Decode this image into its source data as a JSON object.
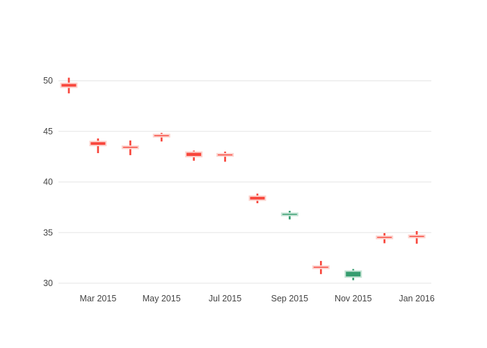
{
  "chart_data": {
    "type": "candlestick",
    "title": "",
    "xlabel": "",
    "ylabel": "",
    "legend": "none",
    "grid": "horizontal",
    "y_ticks": [
      30,
      35,
      40,
      45,
      50
    ],
    "x_ticks": [
      {
        "date": "2015-03-01",
        "label": "Mar 2015"
      },
      {
        "date": "2015-05-01",
        "label": "May 2015"
      },
      {
        "date": "2015-07-01",
        "label": "Jul 2015"
      },
      {
        "date": "2015-09-01",
        "label": "Sep 2015"
      },
      {
        "date": "2015-11-01",
        "label": "Nov 2015"
      },
      {
        "date": "2016-01-01",
        "label": "Jan 2016"
      }
    ],
    "x_range": [
      "2015-01-22",
      "2016-01-15"
    ],
    "y_range": [
      29.1,
      51.1
    ],
    "points": [
      {
        "date": "2015-02-01",
        "open": 49.75,
        "high": 50.3,
        "low": 48.75,
        "close": 49.35
      },
      {
        "date": "2015-03-01",
        "open": 44.0,
        "high": 44.3,
        "low": 42.85,
        "close": 43.6
      },
      {
        "date": "2015-04-01",
        "open": 43.45,
        "high": 44.1,
        "low": 42.65,
        "close": 43.4
      },
      {
        "date": "2015-05-01",
        "open": 44.6,
        "high": 44.85,
        "low": 44.0,
        "close": 44.55
      },
      {
        "date": "2015-06-01",
        "open": 42.95,
        "high": 43.1,
        "low": 42.1,
        "close": 42.5
      },
      {
        "date": "2015-07-01",
        "open": 42.7,
        "high": 43.0,
        "low": 42.0,
        "close": 42.65
      },
      {
        "date": "2015-08-01",
        "open": 38.6,
        "high": 38.85,
        "low": 37.9,
        "close": 38.2
      },
      {
        "date": "2015-09-01",
        "open": 36.75,
        "high": 37.15,
        "low": 36.3,
        "close": 36.85
      },
      {
        "date": "2015-10-01",
        "open": 31.6,
        "high": 32.2,
        "low": 30.9,
        "close": 31.55
      },
      {
        "date": "2015-11-01",
        "open": 30.6,
        "high": 31.4,
        "low": 30.3,
        "close": 31.2
      },
      {
        "date": "2015-12-01",
        "open": 34.55,
        "high": 34.95,
        "low": 33.95,
        "close": 34.5
      },
      {
        "date": "2016-01-01",
        "open": 34.65,
        "high": 35.15,
        "low": 33.9,
        "close": 34.6
      }
    ],
    "colors": {
      "increasing": "#359d6f",
      "decreasing": "#f8463c",
      "increasing_halo": "#c8e5d7",
      "decreasing_halo": "#fcd4cf",
      "grid": "#ececec",
      "tick_label": "#444444",
      "background": "#ffffff"
    }
  }
}
